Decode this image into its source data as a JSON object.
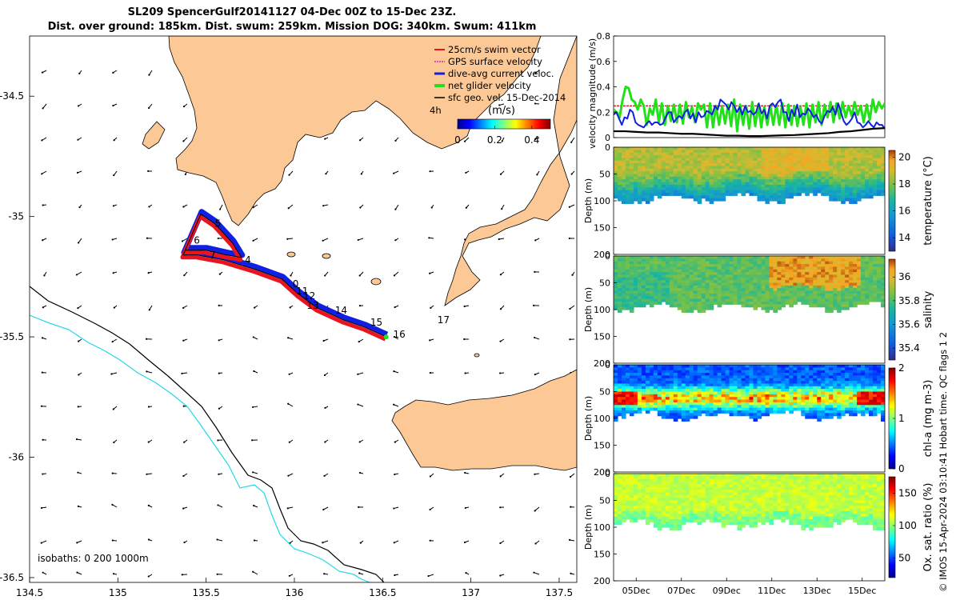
{
  "figure": {
    "title_line1": "SL209 SpencerGulf20141127 04-Dec 00Z to 15-Dec 23Z.",
    "title_line2": "Dist. over ground: 185km. Dist. swum: 259km. Mission DOG: 340km. Swum: 411km",
    "credit": "© IMOS 15-Apr-2024 03:10:41 Hobart time. QC flags 1  2"
  },
  "colors": {
    "land": "#fbc896",
    "swim_red": "#e8141e",
    "dac_blue": "#1020e0",
    "net_green": "#22e01a",
    "isobath_200": "#000000",
    "isobath_1000": "#22d8e8"
  },
  "chart_data": [
    {
      "id": "map",
      "type": "scatter",
      "xlim": [
        134.5,
        137.6
      ],
      "ylim": [
        -36.52,
        -34.25
      ],
      "xticks": [
        134.5,
        135,
        135.5,
        136,
        136.5,
        137,
        137.5
      ],
      "xtick_labels": [
        "134.5",
        "135",
        "135.5",
        "136",
        "136.5",
        "137",
        "137.5"
      ],
      "yticks": [
        -34.5,
        -35,
        -35.5,
        -36,
        -36.5
      ],
      "ytick_labels": [
        "-34.5",
        "-35",
        "-35.5",
        "-36",
        "-36.5"
      ],
      "legend": {
        "placement": "top-right",
        "entries": [
          "25cm/s swim vector",
          "GPS surface velocity",
          "dive-avg current veloc.",
          "net glider velocity",
          "sfc geo. vel. 15-Dec-2014"
        ]
      },
      "colorbar": {
        "label": "(m/s)",
        "side_label": "4h",
        "range": [
          0,
          0.5
        ],
        "ticks": [
          0,
          0.2,
          0.4
        ],
        "tick_labels": [
          "0",
          "0.2",
          "0.4"
        ]
      },
      "isobaths_label": "isobaths: 0   200   1000m",
      "track": [
        {
          "lon": 136.52,
          "lat": -35.5
        },
        {
          "lon": 136.4,
          "lat": -35.46
        },
        {
          "lon": 136.28,
          "lat": -35.43
        },
        {
          "lon": 136.13,
          "lat": -35.38
        },
        {
          "lon": 136.02,
          "lat": -35.32
        },
        {
          "lon": 135.93,
          "lat": -35.26
        },
        {
          "lon": 135.78,
          "lat": -35.22
        },
        {
          "lon": 135.6,
          "lat": -35.18
        },
        {
          "lon": 135.45,
          "lat": -35.16
        },
        {
          "lon": 135.37,
          "lat": -35.16
        },
        {
          "lon": 135.47,
          "lat": -34.99
        },
        {
          "lon": 135.55,
          "lat": -35.03
        },
        {
          "lon": 135.65,
          "lat": -35.11
        },
        {
          "lon": 135.7,
          "lat": -35.17
        },
        {
          "lon": 135.62,
          "lat": -35.16
        },
        {
          "lon": 135.5,
          "lat": -35.14
        },
        {
          "lon": 135.38,
          "lat": -35.14
        }
      ],
      "day_labels": [
        {
          "text": "4",
          "lon": 135.72,
          "lat": -35.18
        },
        {
          "text": "5",
          "lon": 135.55,
          "lat": -35.03
        },
        {
          "text": "6",
          "lon": 135.43,
          "lat": -35.1
        },
        {
          "text": "7",
          "lon": 135.52,
          "lat": -35.16
        },
        {
          "text": "0",
          "lon": 135.99,
          "lat": -35.28
        },
        {
          "text": "11",
          "lon": 136.01,
          "lat": -35.31
        },
        {
          "text": "12",
          "lon": 136.05,
          "lat": -35.33
        },
        {
          "text": "13",
          "lon": 136.07,
          "lat": -35.37
        },
        {
          "text": "14",
          "lon": 136.23,
          "lat": -35.39
        },
        {
          "text": "15",
          "lon": 136.43,
          "lat": -35.44
        },
        {
          "text": "16",
          "lon": 136.56,
          "lat": -35.49
        },
        {
          "text": "17",
          "lon": 136.81,
          "lat": -35.43
        }
      ]
    },
    {
      "id": "velocity",
      "type": "line",
      "ylabel": "velocity magnitude (m/s)",
      "xlim": [
        0,
        12
      ],
      "ylim": [
        0,
        0.8
      ],
      "yticks": [
        0,
        0.2,
        0.4,
        0.6,
        0.8
      ],
      "ytick_labels": [
        "0",
        "0.2",
        "0.4",
        "0.6",
        "0.8"
      ],
      "series_colors": [
        "#e8141e",
        "#22e01a",
        "#1020e0",
        "#000000"
      ],
      "swim_speed": 0.25,
      "net_glider": [
        0.22,
        0.2,
        0.16,
        0.3,
        0.4,
        0.39,
        0.3,
        0.28,
        0.22,
        0.3,
        0.25,
        0.1,
        0.23,
        0.18,
        0.3,
        0.12,
        0.27,
        0.1,
        0.25,
        0.13,
        0.26,
        0.12,
        0.26,
        0.11,
        0.28,
        0.16,
        0.24,
        0.12,
        0.27,
        0.22,
        0.26,
        0.08,
        0.27,
        0.08,
        0.25,
        0.1,
        0.25,
        0.11,
        0.26,
        0.09,
        0.3,
        0.05,
        0.26,
        0.1,
        0.25,
        0.07,
        0.28,
        0.09,
        0.26,
        0.08,
        0.24,
        0.1,
        0.25,
        0.1,
        0.26,
        0.1,
        0.27,
        0.08,
        0.26,
        0.1,
        0.25,
        0.09,
        0.24,
        0.1,
        0.27,
        0.08,
        0.26,
        0.12,
        0.28,
        0.1,
        0.26,
        0.16,
        0.28,
        0.12,
        0.27,
        0.15,
        0.28,
        0.16,
        0.25,
        0.17,
        0.28,
        0.18,
        0.25,
        0.12,
        0.26,
        0.14,
        0.3,
        0.2,
        0.28,
        0.23,
        0.27
      ],
      "dive_avg": [
        0.18,
        0.2,
        0.15,
        0.1,
        0.16,
        0.15,
        0.22,
        0.2,
        0.12,
        0.1,
        0.09,
        0.08,
        0.11,
        0.13,
        0.1,
        0.12,
        0.12,
        0.1,
        0.11,
        0.16,
        0.2,
        0.2,
        0.12,
        0.15,
        0.17,
        0.15,
        0.2,
        0.22,
        0.15,
        0.19,
        0.12,
        0.2,
        0.16,
        0.17,
        0.21,
        0.2,
        0.18,
        0.25,
        0.22,
        0.3,
        0.28,
        0.26,
        0.22,
        0.28,
        0.25,
        0.2,
        0.24,
        0.18,
        0.25,
        0.2,
        0.21,
        0.18,
        0.2,
        0.27,
        0.19,
        0.22,
        0.15,
        0.25,
        0.27,
        0.24,
        0.28,
        0.3,
        0.2,
        0.2,
        0.13,
        0.22,
        0.17,
        0.26,
        0.16,
        0.19,
        0.18,
        0.23,
        0.2,
        0.16,
        0.18,
        0.13,
        0.11,
        0.17,
        0.21,
        0.2,
        0.24,
        0.18,
        0.27,
        0.2,
        0.13,
        0.1,
        0.12,
        0.15,
        0.2,
        0.12,
        0.11,
        0.08,
        0.1,
        0.13,
        0.1,
        0.08,
        0.12,
        0.1,
        0.1,
        0.07
      ],
      "sfc_geo": [
        0.05,
        0.05,
        0.045,
        0.04,
        0.04,
        0.035,
        0.03,
        0.03,
        0.025,
        0.02,
        0.015,
        0.015,
        0.012,
        0.012,
        0.015,
        0.018,
        0.02,
        0.025,
        0.03,
        0.035,
        0.045,
        0.05,
        0.06,
        0.07,
        0.075
      ]
    },
    {
      "id": "temperature",
      "type": "heatmap",
      "ylabel": "Depth (m)",
      "colorbar_label": "temperature (°C)",
      "ylim": [
        0,
        200
      ],
      "yticks": [
        0,
        50,
        100,
        150,
        200
      ],
      "ytick_labels": [
        "0",
        "50",
        "100",
        "150",
        "200"
      ],
      "cticks": [
        14,
        16,
        18,
        20
      ],
      "ctick_labels": [
        "14",
        "16",
        "18",
        "20"
      ],
      "crange": [
        13,
        20.5
      ],
      "surface_value": 18.6,
      "bottom_value": 16.6,
      "thermocline_m": 45
    },
    {
      "id": "salinity",
      "type": "heatmap",
      "ylabel": "Depth (m)",
      "colorbar_label": "salinity",
      "ylim": [
        0,
        200
      ],
      "yticks": [
        0,
        50,
        100,
        150,
        200
      ],
      "ytick_labels": [
        "0",
        "50",
        "100",
        "150",
        "200"
      ],
      "cticks": [
        35.4,
        35.6,
        35.8,
        36
      ],
      "ctick_labels": [
        "35.4",
        "35.6",
        "35.8",
        "36"
      ],
      "crange": [
        35.3,
        36.15
      ],
      "background_value": 35.82,
      "high_patch_value": 36.05
    },
    {
      "id": "chla",
      "type": "heatmap",
      "ylabel": "Depth (m)",
      "colorbar_label": "chl-a (mg m-3)",
      "ylim": [
        0,
        200
      ],
      "yticks": [
        0,
        50,
        100,
        150,
        200
      ],
      "ytick_labels": [
        "0",
        "50",
        "100",
        "150",
        "200"
      ],
      "cticks": [
        0,
        1,
        2
      ],
      "ctick_labels": [
        "0",
        "1",
        "2"
      ],
      "crange": [
        0,
        2
      ],
      "surface_value": 0.3,
      "max_layer_m": 60,
      "max_value": 1.9
    },
    {
      "id": "oxygen",
      "type": "heatmap",
      "ylabel": "Depth (m)",
      "colorbar_label": "Ox. sat. ratio (%)",
      "ylim": [
        0,
        200
      ],
      "yticks": [
        0,
        50,
        100,
        150,
        200
      ],
      "ytick_labels": [
        "0",
        "50",
        "100",
        "150",
        "200"
      ],
      "cticks": [
        50,
        100,
        150
      ],
      "ctick_labels": [
        "50",
        "100",
        "150"
      ],
      "crange": [
        20,
        175
      ],
      "typical_value": 108,
      "xticks_day": [
        1,
        3,
        5,
        7,
        9,
        11
      ],
      "xtick_labels": [
        "05Dec",
        "07Dec",
        "09Dec",
        "11Dec",
        "13Dec",
        "15Dec"
      ]
    }
  ]
}
